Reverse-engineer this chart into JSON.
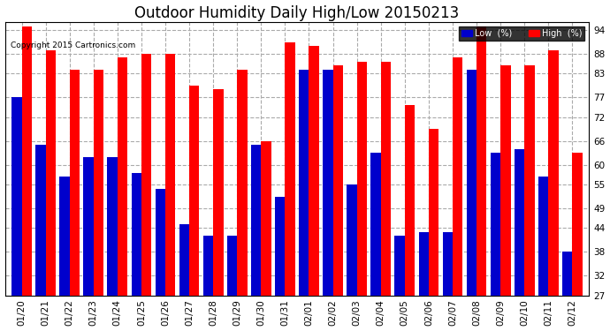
{
  "title": "Outdoor Humidity Daily High/Low 20150213",
  "copyright": "Copyright 2015 Cartronics.com",
  "dates": [
    "01/20",
    "01/21",
    "01/22",
    "01/23",
    "01/24",
    "01/25",
    "01/26",
    "01/27",
    "01/28",
    "01/29",
    "01/30",
    "01/31",
    "02/01",
    "02/02",
    "02/03",
    "02/04",
    "02/05",
    "02/06",
    "02/07",
    "02/08",
    "02/09",
    "02/10",
    "02/11",
    "02/12"
  ],
  "high_values": [
    95,
    89,
    84,
    84,
    87,
    88,
    88,
    80,
    79,
    84,
    66,
    91,
    90,
    85,
    86,
    86,
    75,
    69,
    87,
    95,
    85,
    85,
    89,
    63
  ],
  "low_values": [
    77,
    65,
    57,
    62,
    62,
    58,
    54,
    45,
    42,
    42,
    65,
    52,
    84,
    84,
    55,
    63,
    42,
    43,
    43,
    84,
    63,
    64,
    57,
    38
  ],
  "high_color": "#ff0000",
  "low_color": "#0000cc",
  "bg_color": "#ffffff",
  "yticks": [
    27,
    32,
    38,
    44,
    49,
    55,
    60,
    66,
    72,
    77,
    83,
    88,
    94
  ],
  "ymin": 27,
  "ymax": 96,
  "bar_width": 0.42,
  "title_fontsize": 12,
  "tick_fontsize": 7.5,
  "legend_low_label": "Low  (%)",
  "legend_high_label": "High  (%)"
}
